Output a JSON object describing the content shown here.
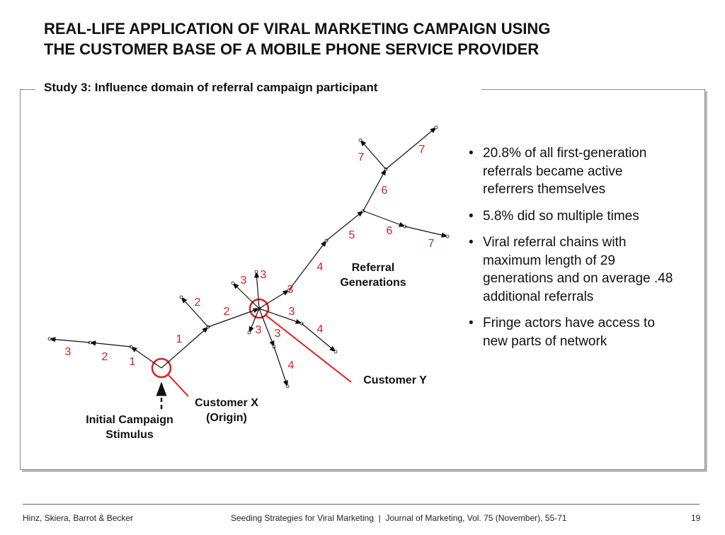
{
  "header": {
    "title_lines": [
      "REAL-LIFE APPLICATION OF VIRAL MARKETING CAMPAIGN USING",
      "THE CUSTOMER BASE OF A MOBILE PHONE SERVICE PROVIDER"
    ]
  },
  "panel": {
    "subtitle": "Study 3: Influence domain of referral campaign participant",
    "diagram": {
      "generation_labels": [
        "1",
        "2",
        "3",
        "1",
        "2",
        "2",
        "3",
        "3",
        "3",
        "3",
        "3",
        "3",
        "4",
        "4",
        "4",
        "5",
        "6",
        "6",
        "7",
        "7",
        "7"
      ],
      "customer_x": [
        "Customer X",
        "(Origin)"
      ],
      "initial_stimulus": [
        "Initial Campaign",
        "Stimulus"
      ],
      "referral_generations": [
        "Referral",
        "Generations"
      ],
      "customer_y": "Customer Y"
    },
    "bullets": [
      "20.8% of all first-generation referrals became active referrers themselves",
      "5.8% did so multiple times",
      "Viral referral chains with maximum length of 29 generations and on average .48 additional referrals",
      "Fringe actors have access to new parts of network"
    ]
  },
  "footer": {
    "authors": "Hinz, Skiera, Barrot & Becker",
    "citation": "Seeding Strategies for Viral Marketing  |  Journal of Marketing, Vol. 75 (November), 55-71",
    "page": "19"
  }
}
